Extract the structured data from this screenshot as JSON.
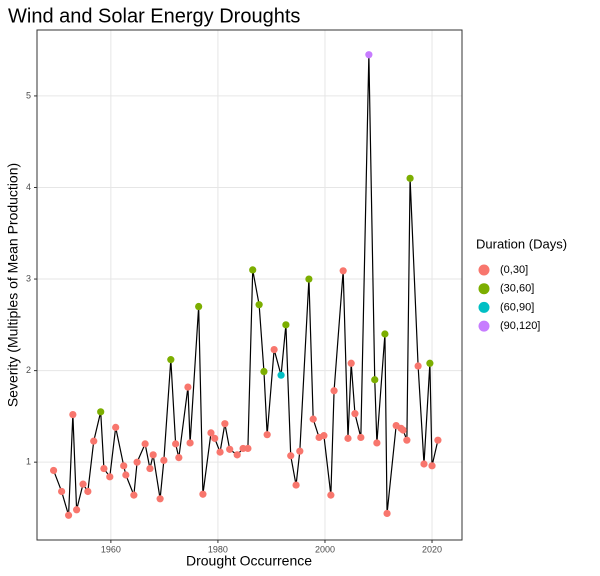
{
  "chart_data": {
    "type": "scatter-line",
    "title": "Wind and Solar Energy Droughts",
    "x_label": "Drought Occurrence",
    "y_label": "Severity (Multiples of Mean Production)",
    "legend_title": "Duration (Days)",
    "legend": [
      {
        "name": "(0,30]",
        "color": "#F8766D"
      },
      {
        "name": "(30,60]",
        "color": "#7CAE00"
      },
      {
        "name": "(60,90]",
        "color": "#00BFC4"
      },
      {
        "name": "(90,120]",
        "color": "#C77CFF"
      }
    ],
    "x": [
      1949.3,
      1950.8,
      1952.1,
      1952.9,
      1953.6,
      1954.8,
      1955.7,
      1956.8,
      1958.1,
      1958.7,
      1959.8,
      1960.9,
      1962.4,
      1962.8,
      1964.3,
      1964.9,
      1966.4,
      1967.3,
      1967.9,
      1969.2,
      1969.9,
      1971.2,
      1972.1,
      1972.7,
      1974.4,
      1974.8,
      1976.4,
      1977.2,
      1978.7,
      1979.4,
      1980.4,
      1981.3,
      1982.2,
      1983.6,
      1984.7,
      1985.6,
      1986.5,
      1987.7,
      1988.6,
      1989.2,
      1990.5,
      1991.8,
      1992.7,
      1993.6,
      1994.6,
      1995.3,
      1997.0,
      1997.8,
      1998.9,
      1999.8,
      2001.1,
      2001.7,
      2003.4,
      2004.3,
      2004.9,
      2005.6,
      2006.7,
      2008.2,
      2009.3,
      2009.7,
      2011.2,
      2011.6,
      2013.3,
      2014.2,
      2014.6,
      2015.3,
      2015.9,
      2017.4,
      2018.5,
      2019.6,
      2020.0,
      2021.1
    ],
    "values": [
      0.91,
      0.68,
      0.42,
      1.52,
      0.48,
      0.76,
      0.68,
      1.23,
      1.55,
      0.93,
      0.84,
      1.38,
      0.96,
      0.86,
      0.64,
      1.0,
      1.2,
      0.93,
      1.08,
      0.6,
      1.02,
      2.12,
      1.2,
      1.05,
      1.82,
      1.21,
      2.7,
      0.65,
      1.32,
      1.26,
      1.11,
      1.42,
      1.14,
      1.08,
      1.15,
      1.15,
      3.1,
      2.72,
      1.99,
      1.3,
      2.23,
      1.95,
      2.5,
      1.07,
      0.75,
      1.12,
      3.0,
      1.47,
      1.27,
      1.29,
      0.64,
      1.78,
      3.09,
      1.26,
      2.08,
      1.53,
      1.27,
      5.45,
      1.9,
      1.21,
      2.4,
      0.44,
      1.4,
      1.37,
      1.35,
      1.24,
      4.1,
      2.05,
      0.98,
      2.08,
      0.96,
      1.24
    ],
    "duration": [
      "(0,30]",
      "(0,30]",
      "(0,30]",
      "(0,30]",
      "(0,30]",
      "(0,30]",
      "(0,30]",
      "(0,30]",
      "(30,60]",
      "(0,30]",
      "(0,30]",
      "(0,30]",
      "(0,30]",
      "(0,30]",
      "(0,30]",
      "(0,30]",
      "(0,30]",
      "(0,30]",
      "(0,30]",
      "(0,30]",
      "(0,30]",
      "(30,60]",
      "(0,30]",
      "(0,30]",
      "(0,30]",
      "(0,30]",
      "(30,60]",
      "(0,30]",
      "(0,30]",
      "(0,30]",
      "(0,30]",
      "(0,30]",
      "(0,30]",
      "(0,30]",
      "(0,30]",
      "(0,30]",
      "(30,60]",
      "(30,60]",
      "(30,60]",
      "(0,30]",
      "(0,30]",
      "(60,90]",
      "(30,60]",
      "(0,30]",
      "(0,30]",
      "(0,30]",
      "(30,60]",
      "(0,30]",
      "(0,30]",
      "(0,30]",
      "(0,30]",
      "(0,30]",
      "(0,30]",
      "(0,30]",
      "(0,30]",
      "(0,30]",
      "(0,30]",
      "(90,120]",
      "(30,60]",
      "(0,30]",
      "(30,60]",
      "(0,30]",
      "(0,30]",
      "(0,30]",
      "(0,30]",
      "(0,30]",
      "(30,60]",
      "(0,30]",
      "(0,30]",
      "(30,60]",
      "(0,30]",
      "(0,30]"
    ],
    "xlim": [
      1946.2,
      2025.6
    ],
    "ylim": [
      0.15,
      5.72
    ],
    "xticks": [
      1960,
      1980,
      2000,
      2020
    ],
    "yticks": [
      1,
      2,
      3,
      4,
      5
    ],
    "grid": true
  }
}
